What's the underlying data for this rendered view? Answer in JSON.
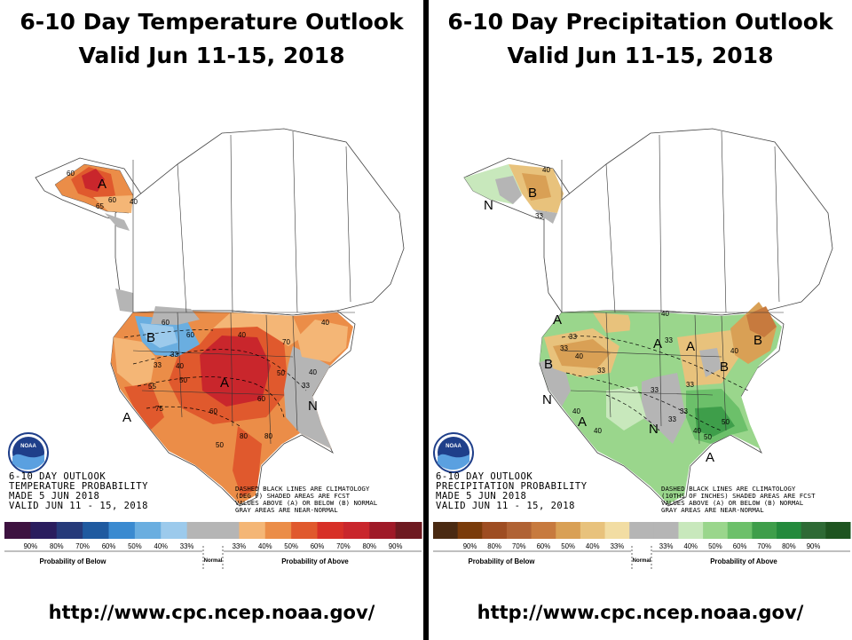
{
  "temperature": {
    "title_line1": "6-10 Day Temperature Outlook",
    "title_line2": "Valid Jun 11-15, 2018",
    "overlay_lines": [
      "6-10 DAY OUTLOOK",
      "TEMPERATURE PROBABILITY",
      "MADE  5 JUN 2018",
      "VALID  JUN 11 - 15, 2018"
    ],
    "disclaimer_lines": [
      "DASHED BLACK LINES ARE CLIMATOLOGY",
      "(DEG F) SHADED AREAS ARE FCST",
      "VALUES ABOVE (A) OR BELOW (B) NORMAL",
      "GRAY AREAS ARE NEAR-NORMAL"
    ],
    "region_labels": [
      "A",
      "B",
      "N",
      "A",
      "A"
    ],
    "isoline_labels": [
      "60",
      "65",
      "60",
      "40",
      "33",
      "40",
      "33",
      "50",
      "55",
      "60",
      "60",
      "75",
      "80",
      "40",
      "50",
      "40",
      "80",
      "33",
      "40",
      "50",
      "60",
      "60",
      "70"
    ],
    "colors": [
      "#3d1240",
      "#2a1d5e",
      "#263a7a",
      "#1f5aa0",
      "#3a8ad0",
      "#6aaee0",
      "#9ccaec",
      "#b5b5b5",
      "#b5b5b5",
      "#f4b676",
      "#eb8d48",
      "#e0592d",
      "#d73027",
      "#c9262c",
      "#9f1a28",
      "#6e1a21"
    ],
    "legend_labels": [
      "90%",
      "80%",
      "70%",
      "60%",
      "50%",
      "40%",
      "33%",
      "33%",
      "40%",
      "50%",
      "60%",
      "70%",
      "80%",
      "90%"
    ],
    "below_label": "Probability of Below",
    "normal_label": "Normal",
    "above_label": "Probability of Above",
    "url": "http://www.cpc.ncep.noaa.gov/"
  },
  "precipitation": {
    "title_line1": "6-10 Day Precipitation Outlook",
    "title_line2": "Valid Jun 11-15, 2018",
    "overlay_lines": [
      "6-10 DAY OUTLOOK",
      "PRECIPITATION PROBABILITY",
      "MADE  5 JUN 2018",
      "VALID  JUN 11 - 15, 2018"
    ],
    "disclaimer_lines": [
      "DASHED BLACK LINES ARE CLIMATOLOGY",
      "(10THS OF INCHES) SHADED AREAS ARE FCST",
      "VALUES ABOVE (A) OR BELOW (B) NORMAL",
      "GRAY AREAS ARE NEAR-NORMAL"
    ],
    "region_labels": [
      "B",
      "N",
      "A",
      "B",
      "A",
      "A",
      "B",
      "B",
      "N",
      "A",
      "N",
      "A"
    ],
    "isoline_labels": [
      "40",
      "33",
      "33",
      "33",
      "40",
      "33",
      "33",
      "40",
      "33",
      "33",
      "40",
      "33",
      "40",
      "40",
      "40",
      "50",
      "33",
      "50"
    ],
    "colors": [
      "#4a2a12",
      "#7a3b0a",
      "#9e4d22",
      "#b06234",
      "#c77a3e",
      "#d9a055",
      "#e8c27c",
      "#f2dda3",
      "#b5b5b5",
      "#b5b5b5",
      "#c8e8bc",
      "#9ad68c",
      "#6cc06a",
      "#3e9e4a",
      "#238a3c",
      "#2e6a35",
      "#1e5420"
    ],
    "legend_labels": [
      "90%",
      "80%",
      "70%",
      "60%",
      "50%",
      "40%",
      "33%",
      "33%",
      "40%",
      "50%",
      "60%",
      "70%",
      "80%",
      "90%"
    ],
    "below_label": "Probability of Below",
    "normal_label": "Normal",
    "above_label": "Probability of Above",
    "url": "http://www.cpc.ncep.noaa.gov/"
  },
  "noaa_logo_text": "NOAA"
}
